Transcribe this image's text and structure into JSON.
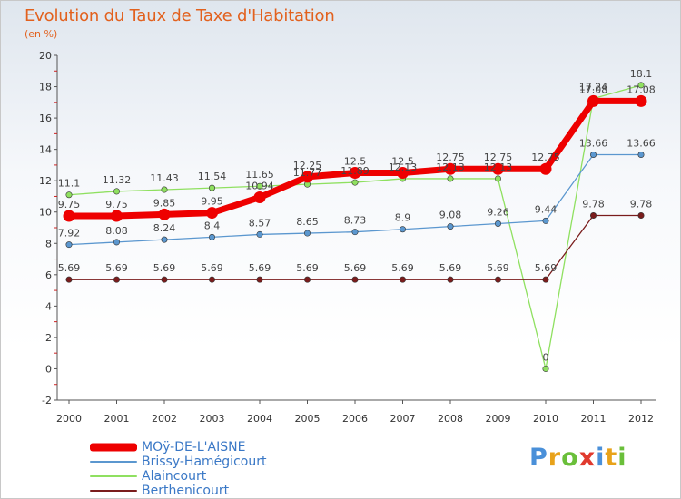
{
  "title": "Evolution du Taux de Taxe d'Habitation",
  "subtitle": "(en %)",
  "chart_data": {
    "type": "line",
    "title": "Evolution du Taux de Taxe d'Habitation",
    "ylabel": "(en %)",
    "xlabel": "",
    "categories": [
      "2000",
      "2001",
      "2002",
      "2003",
      "2004",
      "2005",
      "2006",
      "2007",
      "2008",
      "2009",
      "2010",
      "2011",
      "2012"
    ],
    "yticks": [
      "-2",
      "0",
      "2",
      "4",
      "6",
      "8",
      "10",
      "12",
      "14",
      "16",
      "18",
      "20"
    ],
    "ylim": [
      -2,
      20
    ],
    "grid": false,
    "legend": "bottom-left",
    "series": [
      {
        "name": "MOÿ-DE-L'AISNE",
        "color": "#ee0000",
        "values": [
          9.75,
          9.75,
          9.85,
          9.95,
          10.94,
          12.25,
          12.5,
          12.5,
          12.75,
          12.75,
          12.75,
          17.08,
          17.08
        ],
        "labels": [
          "9.75",
          "9.75",
          "9.85",
          "9.95",
          "10.94",
          "12.25",
          "12.5",
          "12.5",
          "12.75",
          "12.75",
          "12.75",
          "17.08",
          "17.08"
        ]
      },
      {
        "name": "Brissy-Hamégicourt",
        "color": "#5b97cf",
        "values": [
          7.92,
          8.08,
          8.24,
          8.4,
          8.57,
          8.65,
          8.73,
          8.9,
          9.08,
          9.26,
          9.44,
          13.66,
          13.66
        ],
        "labels": [
          "7.92",
          "8.08",
          "8.24",
          "8.4",
          "8.57",
          "8.65",
          "8.73",
          "8.9",
          "9.08",
          "9.26",
          "9.44",
          "13.66",
          "13.66"
        ]
      },
      {
        "name": "Alaincourt",
        "color": "#8fe060",
        "values": [
          11.1,
          11.32,
          11.43,
          11.54,
          11.65,
          11.77,
          11.89,
          12.13,
          12.13,
          12.13,
          0,
          17.24,
          18.1
        ],
        "labels": [
          "11.1",
          "11.32",
          "11.43",
          "11.54",
          "11.65",
          "11.77",
          "11.89",
          "12.13",
          "12.13",
          "12.13",
          "0",
          "17.24",
          "18.1"
        ]
      },
      {
        "name": "Berthenicourt",
        "color": "#7a1c1c",
        "values": [
          5.69,
          5.69,
          5.69,
          5.69,
          5.69,
          5.69,
          5.69,
          5.69,
          5.69,
          5.69,
          5.69,
          9.78,
          9.78
        ],
        "labels": [
          "5.69",
          "5.69",
          "5.69",
          "5.69",
          "5.69",
          "5.69",
          "5.69",
          "5.69",
          "5.69",
          "5.69",
          "5.69",
          "9.78",
          "9.78"
        ]
      }
    ]
  },
  "logo": {
    "text": "Proxiti",
    "letters": [
      "P",
      "r",
      "o",
      "x",
      "i",
      "t",
      "i"
    ],
    "colors": [
      "#4a90d9",
      "#e8a21a",
      "#6abf3a",
      "#e03a2e",
      "#4a90d9",
      "#e8a21a",
      "#6abf3a"
    ]
  }
}
